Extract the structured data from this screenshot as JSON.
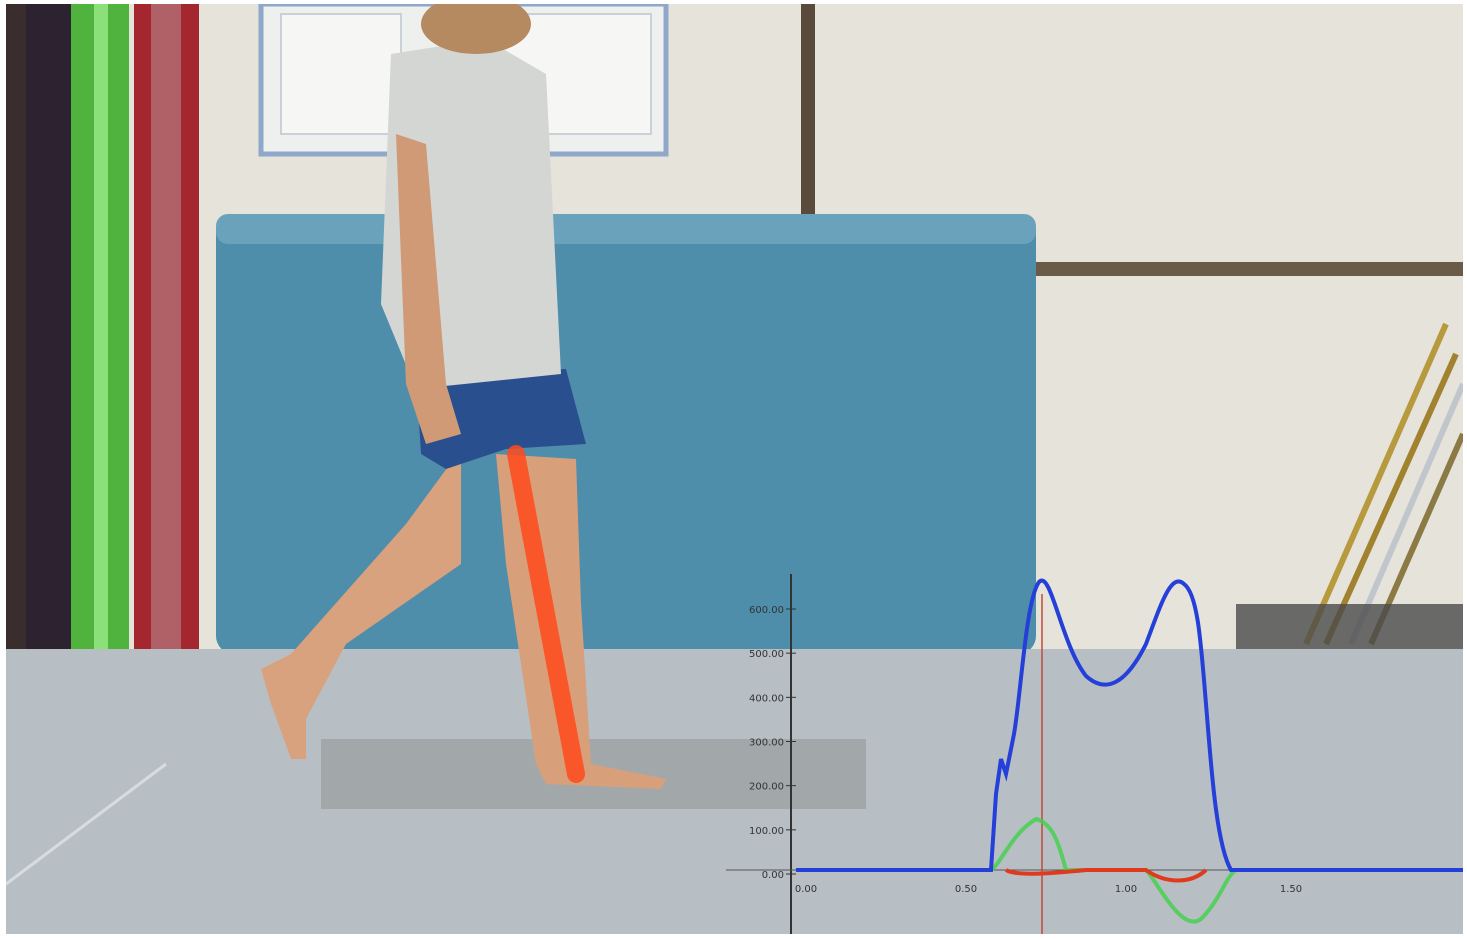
{
  "scene": {
    "description_free": true,
    "colors": {
      "wall": "#e6e3db",
      "floor": "#b8bfc4",
      "mat": "#4f8eaa",
      "force_total": "#2440d8",
      "force_ap": "#e03a1e",
      "force_ml": "#3fd14a",
      "segment_overlay": "#ff4a1c"
    }
  },
  "overlay": {
    "y_tick_labels": [
      "600.00",
      "500.00",
      "400.00",
      "300.00",
      "200.00",
      "100.00",
      "0.00"
    ],
    "x_tick_labels": [
      "0.00",
      "0.50",
      "1.00",
      "1.50"
    ]
  }
}
